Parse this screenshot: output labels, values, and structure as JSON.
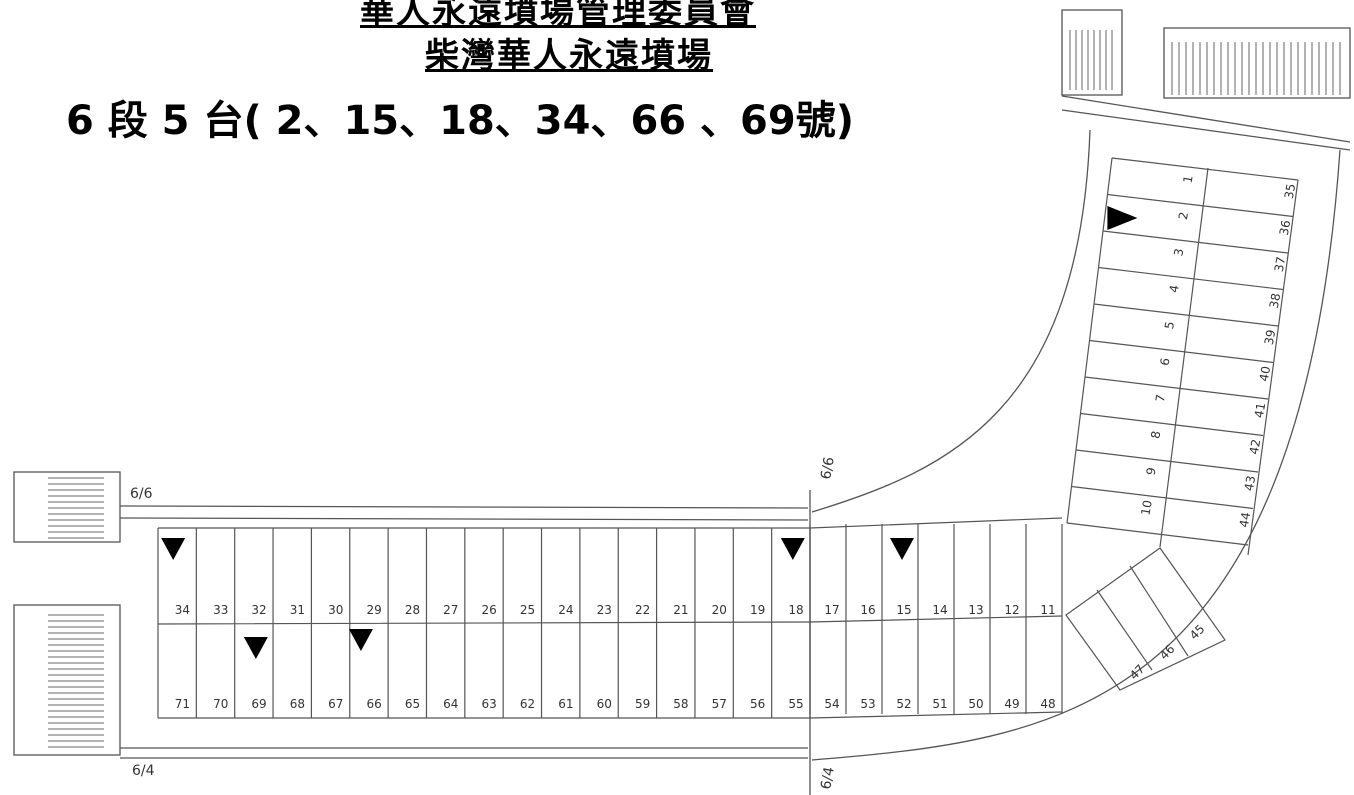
{
  "title": {
    "organization": "華人永遠墳場管理委員會",
    "cemetery": "柴灣華人永遠墳場",
    "plot_info": "6 段 5 台( 2、15、18、34、66 、69號)"
  },
  "section_labels": [
    "6/6",
    "6/6",
    "6/4",
    "6/4"
  ],
  "upper_row_numbers": [
    "34",
    "33",
    "32",
    "31",
    "30",
    "29",
    "28",
    "27",
    "26",
    "25",
    "24",
    "23",
    "22",
    "21",
    "20",
    "19",
    "18",
    "17",
    "16",
    "15",
    "14",
    "13",
    "12",
    "11"
  ],
  "lower_row_numbers": [
    "71",
    "70",
    "69",
    "68",
    "67",
    "66",
    "65",
    "64",
    "63",
    "62",
    "61",
    "60",
    "59",
    "58",
    "57",
    "56",
    "55",
    "54",
    "53",
    "52",
    "51",
    "50",
    "49",
    "48"
  ],
  "right_inner_numbers": [
    "1",
    "2",
    "3",
    "4",
    "5",
    "6",
    "7",
    "8",
    "9",
    "10"
  ],
  "right_outer_numbers": [
    "35",
    "36",
    "37",
    "38",
    "39",
    "40",
    "41",
    "42",
    "43",
    "44"
  ],
  "corner_numbers": [
    "47",
    "46",
    "45"
  ],
  "highlighted_graves": [
    "2",
    "15",
    "18",
    "34",
    "66",
    "69"
  ],
  "colors": {
    "line": "#555555",
    "marker": "#000000",
    "text": "#000000"
  }
}
